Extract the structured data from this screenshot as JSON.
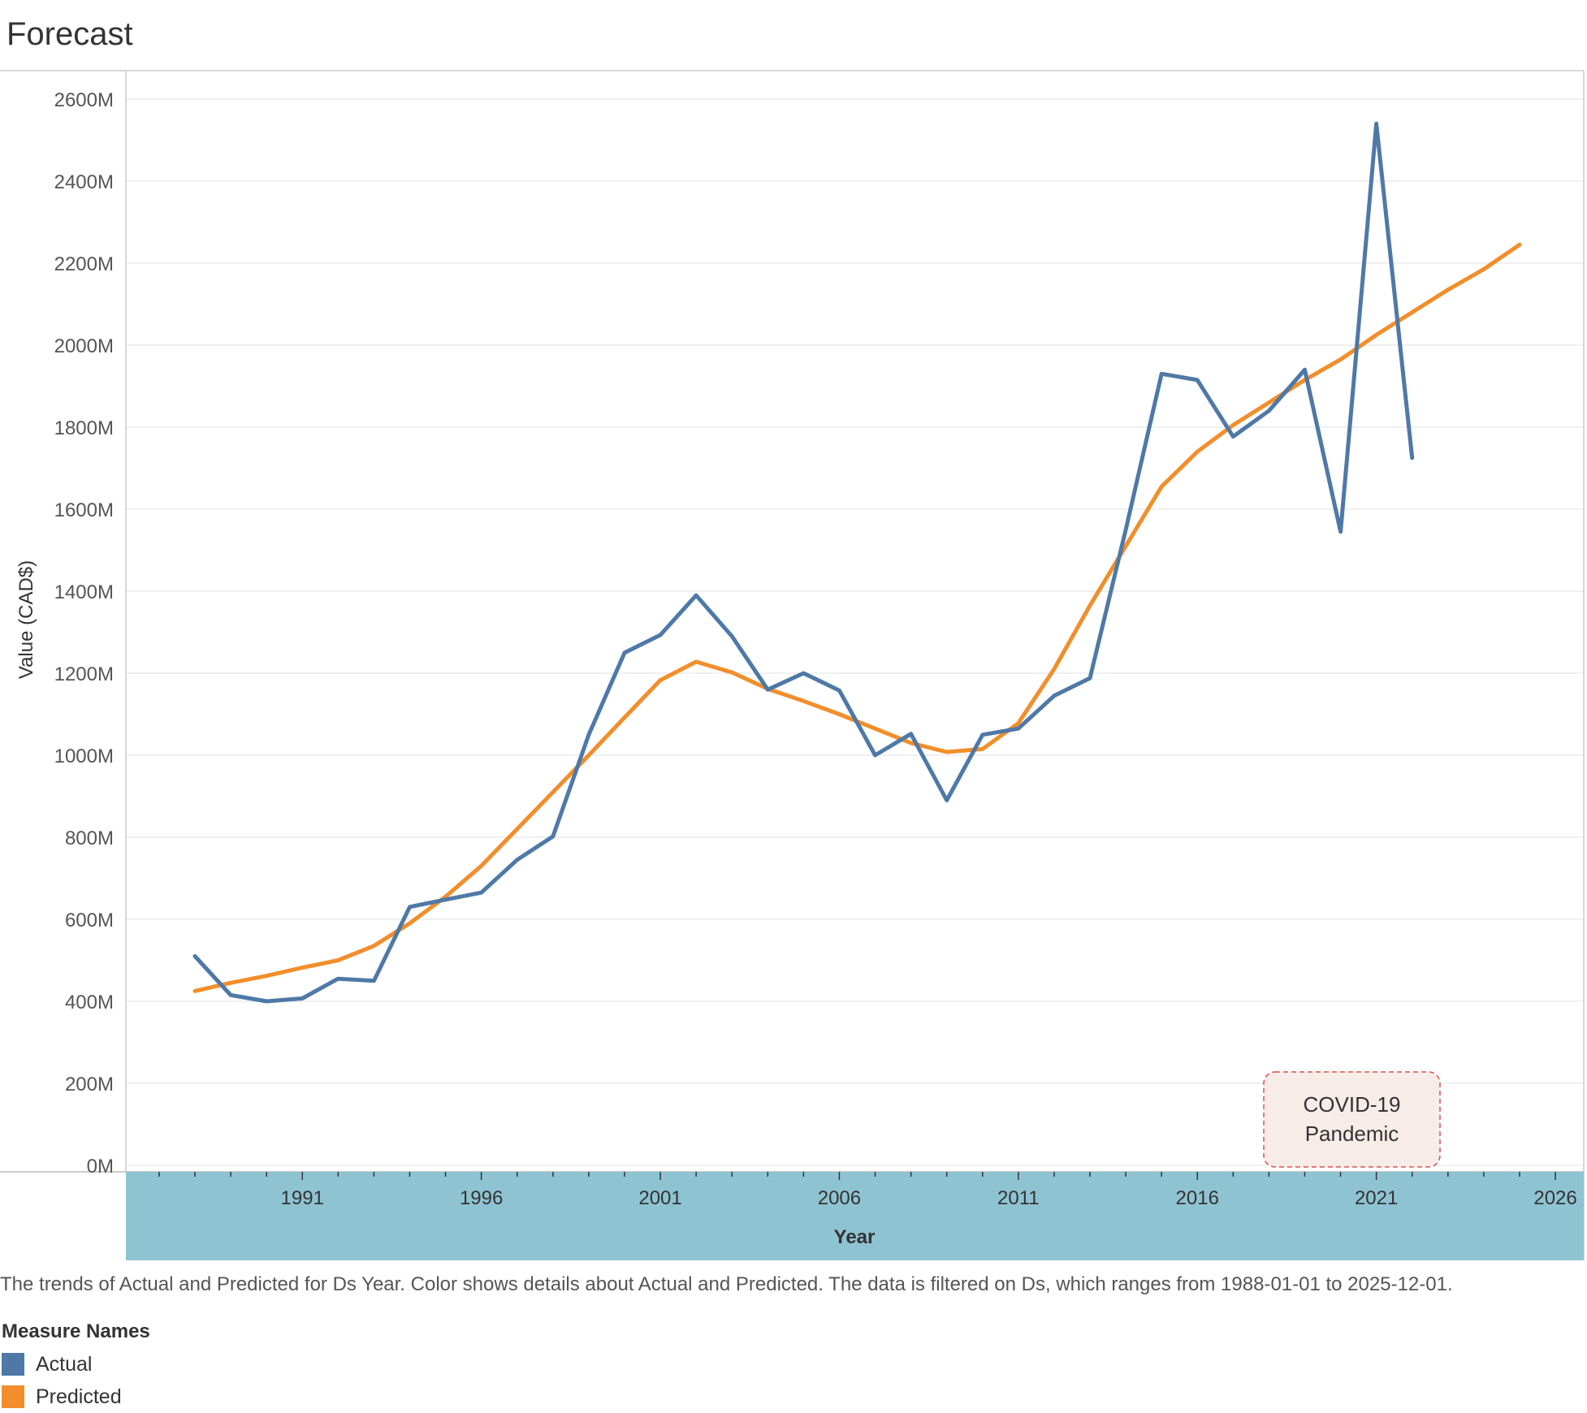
{
  "chart_data": {
    "type": "line",
    "title": "Forecast",
    "xlabel": "Year",
    "ylabel": "Value (CAD$)",
    "xlim": [
      1986.1,
      2027
    ],
    "ylim": [
      0,
      2670
    ],
    "x_ticks": [
      1991,
      1996,
      2001,
      2006,
      2011,
      2016,
      2021,
      2026
    ],
    "y_ticks": [
      0,
      200,
      400,
      600,
      800,
      1000,
      1200,
      1400,
      1600,
      1800,
      2000,
      2200,
      2400,
      2600
    ],
    "y_tick_suffix": "M",
    "grid": true,
    "legend_position": "bottom-left",
    "series": [
      {
        "name": "Actual",
        "color": "#4e79a7",
        "x": [
          1988,
          1989,
          1990,
          1991,
          1992,
          1993,
          1994,
          1995,
          1996,
          1997,
          1998,
          1999,
          2000,
          2001,
          2002,
          2003,
          2004,
          2005,
          2006,
          2007,
          2008,
          2009,
          2010,
          2011,
          2012,
          2013,
          2014,
          2015,
          2016,
          2017,
          2018,
          2019,
          2020,
          2021,
          2022
        ],
        "values": [
          510,
          415,
          400,
          407,
          455,
          450,
          630,
          648,
          665,
          745,
          802,
          1050,
          1250,
          1293,
          1390,
          1290,
          1160,
          1200,
          1158,
          1000,
          1052,
          890,
          1050,
          1065,
          1145,
          1188,
          1550,
          1930,
          1915,
          1777,
          1840,
          1940,
          1545,
          2540,
          1725
        ]
      },
      {
        "name": "Predicted",
        "color": "#f28e2b",
        "x": [
          1988,
          1989,
          1990,
          1991,
          1992,
          1993,
          1994,
          1995,
          1996,
          1997,
          1998,
          1999,
          2000,
          2001,
          2002,
          2003,
          2004,
          2005,
          2006,
          2007,
          2008,
          2009,
          2010,
          2011,
          2012,
          2013,
          2014,
          2015,
          2016,
          2017,
          2018,
          2019,
          2020,
          2021,
          2022,
          2023,
          2024,
          2025
        ],
        "values": [
          425,
          445,
          462,
          482,
          500,
          535,
          590,
          655,
          730,
          820,
          910,
          1000,
          1092,
          1183,
          1228,
          1202,
          1162,
          1132,
          1100,
          1065,
          1030,
          1008,
          1015,
          1078,
          1210,
          1365,
          1510,
          1655,
          1740,
          1805,
          1860,
          1915,
          1965,
          2025,
          2080,
          2135,
          2185,
          2245
        ]
      }
    ],
    "annotations": [
      {
        "text_lines": [
          "COVID-19",
          "Pandemic"
        ],
        "year_range": [
          2018,
          2023
        ]
      }
    ]
  },
  "caption": "The trends of Actual and Predicted for Ds Year.  Color shows details about Actual and Predicted. The data is filtered on Ds, which ranges from 1988-01-01 to 2025-12-01.",
  "legend": {
    "title": "Measure Names",
    "items": [
      {
        "label": "Actual",
        "color": "#4e79a7"
      },
      {
        "label": "Predicted",
        "color": "#f28e2b"
      }
    ]
  },
  "colors": {
    "axis_band": "#8ec3d2",
    "annotation_border": "#d9534f",
    "annotation_fill": "#f7ece8"
  }
}
